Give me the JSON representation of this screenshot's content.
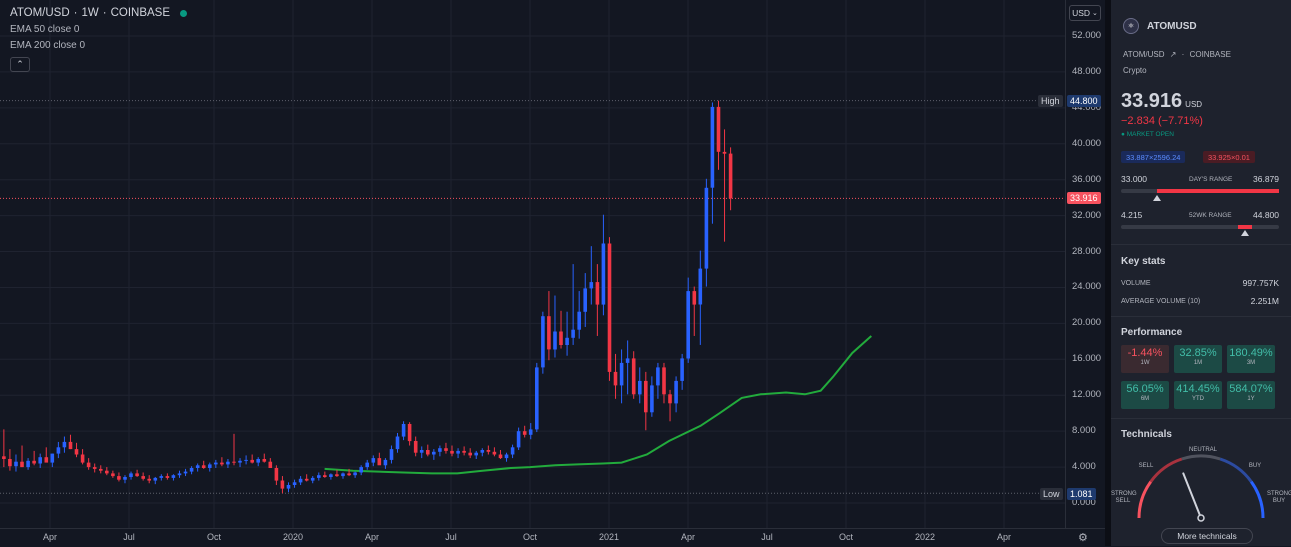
{
  "legend": {
    "symbol": "ATOM/USD",
    "interval": "1W",
    "exchange": "COINBASE",
    "ema50": "EMA 50 close 0",
    "ema200": "EMA 200 close 0",
    "collapse_icon": "chevron-up-icon"
  },
  "axis": {
    "currency_button": "USD",
    "y_ticks": [
      "52.000",
      "48.000",
      "44.000",
      "40.000",
      "36.000",
      "32.000",
      "28.000",
      "24.000",
      "20.000",
      "16.000",
      "12.000",
      "8.000",
      "4.000",
      "0.000"
    ],
    "high_label": "High",
    "high_value": "44.800",
    "low_label": "Low",
    "low_value": "1.081",
    "last_price": "33.916",
    "x_ticks": [
      "Apr",
      "Jul",
      "Oct",
      "2020",
      "Apr",
      "Jul",
      "Oct",
      "2021",
      "Apr",
      "Jul",
      "Oct",
      "2022",
      "Apr"
    ],
    "settings_icon": "gear-icon"
  },
  "chart_data": {
    "type": "candlestick",
    "y_range": [
      -1.5,
      56
    ],
    "high": 44.8,
    "low": 1.081,
    "last": 33.916,
    "x_ticks": [
      "Apr 2019",
      "Jul 2019",
      "Oct 2019",
      "2020",
      "Apr 2020",
      "Jul 2020",
      "Oct 2020",
      "2021",
      "Apr 2021",
      "Jul 2021",
      "Oct 2021",
      "2022",
      "Apr 2022"
    ],
    "candles_ohlc": [
      [
        5.2,
        8.2,
        4.0,
        4.9
      ],
      [
        4.9,
        6.0,
        3.6,
        4.1
      ],
      [
        4.1,
        5.4,
        3.5,
        4.6
      ],
      [
        4.6,
        6.4,
        4.0,
        4.0
      ],
      [
        4.0,
        5.0,
        3.7,
        4.7
      ],
      [
        4.7,
        5.8,
        4.2,
        4.4
      ],
      [
        4.4,
        5.5,
        3.9,
        5.1
      ],
      [
        5.1,
        6.2,
        4.6,
        4.5
      ],
      [
        4.5,
        5.5,
        4.0,
        5.5
      ],
      [
        5.5,
        6.8,
        5.0,
        6.2
      ],
      [
        6.2,
        7.4,
        5.6,
        6.8
      ],
      [
        6.8,
        7.6,
        6.0,
        6.0
      ],
      [
        6.0,
        6.7,
        5.1,
        5.4
      ],
      [
        5.4,
        6.0,
        4.3,
        4.5
      ],
      [
        4.5,
        5.0,
        3.7,
        4.0
      ],
      [
        4.0,
        4.4,
        3.4,
        3.8
      ],
      [
        3.8,
        4.2,
        3.3,
        3.6
      ],
      [
        3.6,
        4.0,
        3.1,
        3.3
      ],
      [
        3.3,
        3.6,
        2.8,
        3.0
      ],
      [
        3.0,
        3.4,
        2.4,
        2.6
      ],
      [
        2.6,
        3.1,
        2.2,
        2.9
      ],
      [
        2.9,
        3.5,
        2.6,
        3.3
      ],
      [
        3.3,
        3.7,
        2.9,
        3.0
      ],
      [
        3.0,
        3.4,
        2.5,
        2.7
      ],
      [
        2.7,
        3.1,
        2.2,
        2.5
      ],
      [
        2.5,
        2.9,
        2.1,
        2.8
      ],
      [
        2.8,
        3.2,
        2.5,
        3.0
      ],
      [
        3.0,
        3.3,
        2.6,
        2.8
      ],
      [
        2.8,
        3.2,
        2.5,
        3.1
      ],
      [
        3.1,
        3.6,
        2.8,
        3.3
      ],
      [
        3.3,
        3.8,
        3.0,
        3.5
      ],
      [
        3.5,
        4.1,
        3.2,
        3.9
      ],
      [
        3.9,
        4.4,
        3.5,
        4.2
      ],
      [
        4.2,
        4.7,
        3.8,
        3.9
      ],
      [
        3.9,
        4.5,
        3.5,
        4.3
      ],
      [
        4.3,
        4.8,
        3.9,
        4.5
      ],
      [
        4.5,
        5.1,
        4.1,
        4.3
      ],
      [
        4.3,
        4.9,
        3.9,
        4.6
      ],
      [
        4.6,
        7.7,
        4.2,
        4.5
      ],
      [
        4.5,
        5.0,
        4.0,
        4.7
      ],
      [
        4.7,
        5.3,
        4.3,
        4.8
      ],
      [
        4.8,
        5.4,
        4.4,
        4.5
      ],
      [
        4.5,
        5.1,
        4.1,
        4.9
      ],
      [
        4.9,
        5.5,
        4.5,
        4.6
      ],
      [
        4.6,
        5.0,
        4.0,
        3.9
      ],
      [
        3.9,
        4.2,
        2.0,
        2.5
      ],
      [
        2.5,
        3.0,
        1.081,
        1.6
      ],
      [
        1.6,
        2.3,
        1.2,
        2.0
      ],
      [
        2.0,
        2.6,
        1.7,
        2.3
      ],
      [
        2.3,
        3.0,
        2.0,
        2.7
      ],
      [
        2.7,
        3.2,
        2.4,
        2.5
      ],
      [
        2.5,
        3.0,
        2.2,
        2.8
      ],
      [
        2.8,
        3.4,
        2.5,
        3.1
      ],
      [
        3.1,
        3.5,
        2.8,
        2.9
      ],
      [
        2.9,
        3.3,
        2.6,
        3.2
      ],
      [
        3.2,
        3.7,
        2.9,
        3.0
      ],
      [
        3.0,
        3.4,
        2.7,
        3.3
      ],
      [
        3.3,
        3.8,
        3.0,
        3.1
      ],
      [
        3.1,
        3.5,
        2.8,
        3.4
      ],
      [
        3.4,
        4.2,
        3.1,
        4.0
      ],
      [
        4.0,
        4.8,
        3.7,
        4.5
      ],
      [
        4.5,
        5.3,
        4.1,
        5.0
      ],
      [
        5.0,
        5.6,
        4.5,
        4.2
      ],
      [
        4.2,
        5.0,
        3.8,
        4.8
      ],
      [
        4.8,
        6.4,
        4.4,
        6.0
      ],
      [
        6.0,
        7.8,
        5.6,
        7.4
      ],
      [
        7.4,
        9.1,
        7.0,
        8.8
      ],
      [
        8.8,
        9.0,
        6.4,
        6.9
      ],
      [
        6.9,
        7.4,
        5.2,
        5.6
      ],
      [
        5.6,
        6.3,
        5.0,
        5.9
      ],
      [
        5.9,
        6.5,
        5.2,
        5.4
      ],
      [
        5.4,
        6.0,
        4.8,
        5.7
      ],
      [
        5.7,
        6.4,
        5.2,
        6.1
      ],
      [
        6.1,
        6.7,
        5.5,
        5.8
      ],
      [
        5.8,
        6.4,
        5.2,
        5.5
      ],
      [
        5.5,
        6.1,
        5.0,
        5.8
      ],
      [
        5.8,
        6.3,
        5.3,
        5.6
      ],
      [
        5.6,
        6.1,
        5.0,
        5.3
      ],
      [
        5.3,
        5.8,
        4.9,
        5.6
      ],
      [
        5.6,
        6.1,
        5.2,
        5.9
      ],
      [
        5.9,
        6.4,
        5.4,
        5.7
      ],
      [
        5.7,
        6.2,
        5.2,
        5.4
      ],
      [
        5.4,
        5.9,
        4.9,
        5.0
      ],
      [
        5.0,
        5.6,
        4.6,
        5.4
      ],
      [
        5.4,
        6.5,
        5.0,
        6.2
      ],
      [
        6.2,
        8.4,
        5.9,
        8.0
      ],
      [
        8.0,
        8.6,
        7.3,
        7.6
      ],
      [
        7.6,
        8.9,
        7.1,
        8.2
      ],
      [
        8.2,
        15.6,
        7.9,
        15.1
      ],
      [
        15.1,
        21.3,
        14.4,
        20.8
      ],
      [
        20.8,
        23.6,
        15.9,
        17.1
      ],
      [
        17.1,
        23.1,
        16.2,
        19.1
      ],
      [
        19.1,
        21.4,
        17.2,
        17.6
      ],
      [
        17.6,
        21.3,
        16.4,
        18.4
      ],
      [
        18.4,
        26.6,
        17.6,
        19.3
      ],
      [
        19.3,
        23.6,
        18.3,
        21.3
      ],
      [
        21.3,
        25.6,
        19.6,
        23.9
      ],
      [
        23.9,
        28.6,
        22.1,
        24.6
      ],
      [
        24.6,
        26.6,
        18.6,
        22.1
      ],
      [
        22.1,
        32.1,
        20.9,
        28.9
      ],
      [
        28.9,
        29.6,
        13.6,
        14.6
      ],
      [
        14.6,
        16.6,
        11.6,
        13.1
      ],
      [
        13.1,
        17.1,
        11.1,
        15.6
      ],
      [
        15.6,
        18.1,
        12.1,
        16.1
      ],
      [
        16.1,
        16.9,
        11.6,
        12.1
      ],
      [
        12.1,
        15.1,
        11.1,
        13.6
      ],
      [
        13.6,
        14.6,
        8.1,
        10.1
      ],
      [
        10.1,
        14.1,
        9.6,
        13.1
      ],
      [
        13.1,
        15.6,
        11.6,
        15.1
      ],
      [
        15.1,
        15.6,
        11.1,
        12.1
      ],
      [
        12.1,
        12.6,
        9.1,
        11.1
      ],
      [
        11.1,
        14.1,
        10.1,
        13.6
      ],
      [
        13.6,
        16.6,
        12.6,
        16.1
      ],
      [
        16.1,
        25.1,
        15.6,
        23.6
      ],
      [
        23.6,
        24.1,
        18.6,
        22.1
      ],
      [
        22.1,
        28.1,
        17.6,
        26.1
      ],
      [
        26.1,
        36.1,
        24.1,
        35.1
      ],
      [
        35.1,
        44.6,
        31.1,
        44.1
      ],
      [
        44.1,
        44.8,
        37.1,
        39.1
      ],
      [
        39.1,
        41.6,
        29.1,
        38.9
      ],
      [
        38.9,
        39.6,
        32.6,
        33.916
      ]
    ],
    "ema50": [
      [
        2020.1,
        3.8
      ],
      [
        2020.19,
        3.6
      ],
      [
        2020.27,
        3.5
      ],
      [
        2020.35,
        3.4
      ],
      [
        2020.44,
        3.3
      ],
      [
        2020.52,
        3.3
      ],
      [
        2020.6,
        3.6
      ],
      [
        2020.69,
        3.9
      ],
      [
        2020.75,
        4.0
      ],
      [
        2020.83,
        4.2
      ],
      [
        2020.9,
        4.3
      ],
      [
        2020.98,
        4.4
      ],
      [
        2021.04,
        4.5
      ],
      [
        2021.12,
        5.4
      ],
      [
        2021.19,
        6.9
      ],
      [
        2021.29,
        8.6
      ],
      [
        2021.35,
        10.0
      ],
      [
        2021.42,
        11.7
      ],
      [
        2021.48,
        12.1
      ],
      [
        2021.56,
        12.3
      ],
      [
        2021.62,
        12.1
      ],
      [
        2021.67,
        12.5
      ],
      [
        2021.71,
        14.1
      ],
      [
        2021.77,
        16.7
      ],
      [
        2021.83,
        18.6
      ]
    ]
  },
  "panel": {
    "symbol": "ATOMUSD",
    "pair": "ATOM/USD",
    "exchange": "COINBASE",
    "category": "Crypto",
    "price": "33.916",
    "currency": "USD",
    "change": "−2.834 (−7.71%)",
    "market_status": "MARKET OPEN",
    "bid": "33.887×2596.24",
    "ask": "33.925×0.01",
    "day_range": {
      "low": "33.000",
      "title": "DAY'S RANGE",
      "high": "36.879",
      "marker": 0.23
    },
    "wk52_range": {
      "low": "4.215",
      "title": "52WK RANGE",
      "high": "44.800",
      "marker": 0.74
    },
    "key_stats_title": "Key stats",
    "stats": [
      {
        "label": "VOLUME",
        "value": "997.757K"
      },
      {
        "label": "AVERAGE VOLUME (10)",
        "value": "2.251M"
      }
    ],
    "performance_title": "Performance",
    "performance": [
      {
        "value": "-1.44%",
        "period": "1W",
        "positive": false
      },
      {
        "value": "32.85%",
        "period": "1M",
        "positive": true
      },
      {
        "value": "180.49%",
        "period": "3M",
        "positive": true
      },
      {
        "value": "56.05%",
        "period": "6M",
        "positive": true
      },
      {
        "value": "414.45%",
        "period": "YTD",
        "positive": true
      },
      {
        "value": "584.07%",
        "period": "1Y",
        "positive": true
      }
    ],
    "technicals_title": "Technicals",
    "gauge": {
      "neutral": "NEUTRAL",
      "sell": "SELL",
      "buy": "BUY",
      "strong_sell": "STRONG SELL",
      "strong_buy": "STRONG BUY",
      "needle_level": 0.38
    },
    "more_button": "More technicals"
  },
  "colors": {
    "background": "#131722",
    "panel": "#1e222d",
    "up": "#2962ff",
    "down": "#f23645",
    "ema": "#22ab3c",
    "positive": "#089981"
  }
}
